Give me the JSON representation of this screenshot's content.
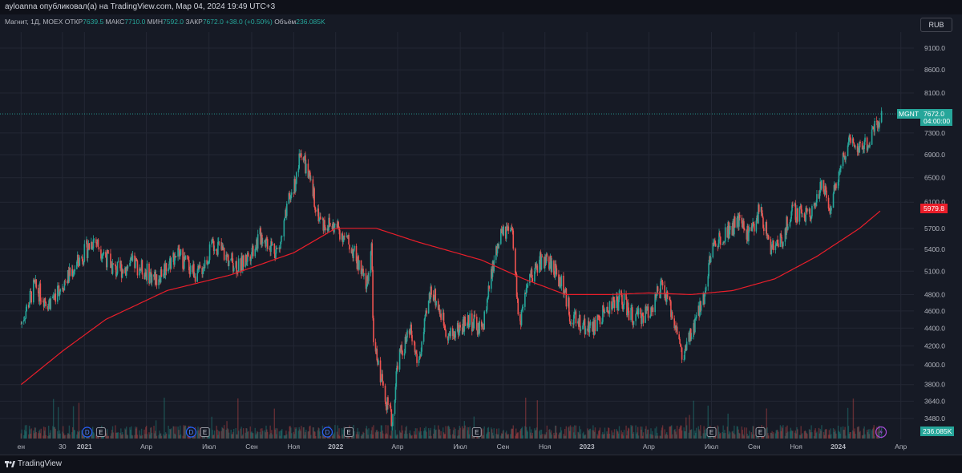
{
  "header": {
    "publisher_line": "ayloanna опубликовал(а) на TradingView.com, Мар 04, 2024 19:49 UTC+3"
  },
  "legend": {
    "symbol": "Магнит, 1Д, MOEX",
    "open_label": "ОТКР",
    "open_value": "7639.5",
    "high_label": "МАКС",
    "high_value": "7710.0",
    "low_label": "МИН",
    "low_value": "7592.0",
    "close_label": "ЗАКР",
    "close_value": "7672.0",
    "change": "+38.0 (+0.50%)",
    "volume_label": "Объём",
    "volume_value": "236.085K"
  },
  "currency_button": "RUB",
  "price_tag": {
    "ticker": "MGNT",
    "price": "7672.0",
    "countdown": "04:00:00"
  },
  "ma_tag": "5979.8",
  "volume_tag": "236.085K",
  "footer": {
    "brand": "TradingView"
  },
  "colors": {
    "up": "#26a69a",
    "down": "#ef5350",
    "ma": "#e91e2a",
    "background": "#161a25",
    "grid": "#232734"
  },
  "chart_data": {
    "type": "candlestick",
    "symbol": "MGNT",
    "interval": "1D",
    "y_axis_ticks": [
      3480,
      3640,
      3800,
      4000,
      4200,
      4400,
      4600,
      4800,
      5100,
      5400,
      5700,
      6100,
      6500,
      6900,
      7300,
      8100,
      8600,
      9100
    ],
    "y_axis_labels": [
      "3480.0",
      "3640.0",
      "3800.0",
      "4000.0",
      "4200.0",
      "4400.0",
      "4600.0",
      "4800.0",
      "5100.0",
      "5400.0",
      "5700.0",
      "6100.0",
      "6500.0",
      "6900.0",
      "7300.0",
      "8100.0",
      "8600.0",
      "9100.0"
    ],
    "y_scale": "log",
    "x_axis_labels": [
      "ен",
      "30",
      "2021",
      "Апр",
      "Июл",
      "Сен",
      "Ноя",
      "2022",
      "Апр",
      "Июл",
      "Сен",
      "Ноя",
      "2023",
      "Апр",
      "Июл",
      "Сен",
      "Ноя",
      "2024",
      "Апр"
    ],
    "x_axis_label_dates": [
      "2020-10-01",
      "2020-11-30",
      "2021-01-01",
      "2021-04-01",
      "2021-07-01",
      "2021-09-01",
      "2021-11-01",
      "2022-01-01",
      "2022-04-01",
      "2022-07-01",
      "2022-09-01",
      "2022-11-01",
      "2023-01-01",
      "2023-04-01",
      "2023-07-01",
      "2023-09-01",
      "2023-11-01",
      "2024-01-01",
      "2024-04-01"
    ],
    "x_axis_bold": [
      "2021",
      "2022",
      "2023",
      "2024"
    ],
    "price_anchors": [
      {
        "date": "2020-10-01",
        "price": 4450
      },
      {
        "date": "2020-10-20",
        "price": 4900
      },
      {
        "date": "2020-11-10",
        "price": 4700
      },
      {
        "date": "2020-12-10",
        "price": 5050
      },
      {
        "date": "2021-01-15",
        "price": 5550
      },
      {
        "date": "2021-02-15",
        "price": 5100
      },
      {
        "date": "2021-03-15",
        "price": 5200
      },
      {
        "date": "2021-04-15",
        "price": 5000
      },
      {
        "date": "2021-05-15",
        "price": 5350
      },
      {
        "date": "2021-06-15",
        "price": 5050
      },
      {
        "date": "2021-07-10",
        "price": 5500
      },
      {
        "date": "2021-07-25",
        "price": 5300
      },
      {
        "date": "2021-08-15",
        "price": 5150
      },
      {
        "date": "2021-09-15",
        "price": 5600
      },
      {
        "date": "2021-10-10",
        "price": 5350
      },
      {
        "date": "2021-10-25",
        "price": 6100
      },
      {
        "date": "2021-11-05",
        "price": 6500
      },
      {
        "date": "2021-11-12",
        "price": 7000
      },
      {
        "date": "2021-11-25",
        "price": 6400
      },
      {
        "date": "2021-12-10",
        "price": 5800
      },
      {
        "date": "2022-01-05",
        "price": 5700
      },
      {
        "date": "2022-01-25",
        "price": 5400
      },
      {
        "date": "2022-02-15",
        "price": 4900
      },
      {
        "date": "2022-02-22",
        "price": 5450
      },
      {
        "date": "2022-02-25",
        "price": 4200
      },
      {
        "date": "2022-03-24",
        "price": 3440
      },
      {
        "date": "2022-04-01",
        "price": 4050
      },
      {
        "date": "2022-04-20",
        "price": 4350
      },
      {
        "date": "2022-05-01",
        "price": 4000
      },
      {
        "date": "2022-05-20",
        "price": 4900
      },
      {
        "date": "2022-06-15",
        "price": 4300
      },
      {
        "date": "2022-07-15",
        "price": 4500
      },
      {
        "date": "2022-08-01",
        "price": 4350
      },
      {
        "date": "2022-08-20",
        "price": 5300
      },
      {
        "date": "2022-09-01",
        "price": 5650
      },
      {
        "date": "2022-09-15",
        "price": 5600
      },
      {
        "date": "2022-09-25",
        "price": 4400
      },
      {
        "date": "2022-10-10",
        "price": 5000
      },
      {
        "date": "2022-10-25",
        "price": 5250
      },
      {
        "date": "2022-11-10",
        "price": 5200
      },
      {
        "date": "2022-11-25",
        "price": 4950
      },
      {
        "date": "2022-12-10",
        "price": 4500
      },
      {
        "date": "2023-01-10",
        "price": 4400
      },
      {
        "date": "2023-02-01",
        "price": 4650
      },
      {
        "date": "2023-02-20",
        "price": 4750
      },
      {
        "date": "2023-03-10",
        "price": 4500
      },
      {
        "date": "2023-04-01",
        "price": 4600
      },
      {
        "date": "2023-04-20",
        "price": 4900
      },
      {
        "date": "2023-05-10",
        "price": 4450
      },
      {
        "date": "2023-05-20",
        "price": 4050
      },
      {
        "date": "2023-06-05",
        "price": 4400
      },
      {
        "date": "2023-06-20",
        "price": 4800
      },
      {
        "date": "2023-07-01",
        "price": 5400
      },
      {
        "date": "2023-07-20",
        "price": 5650
      },
      {
        "date": "2023-08-10",
        "price": 5800
      },
      {
        "date": "2023-08-25",
        "price": 5600
      },
      {
        "date": "2023-09-10",
        "price": 6000
      },
      {
        "date": "2023-09-25",
        "price": 5400
      },
      {
        "date": "2023-10-10",
        "price": 5500
      },
      {
        "date": "2023-10-25",
        "price": 5950
      },
      {
        "date": "2023-11-10",
        "price": 5900
      },
      {
        "date": "2023-11-25",
        "price": 6000
      },
      {
        "date": "2023-12-10",
        "price": 6400
      },
      {
        "date": "2023-12-20",
        "price": 6050
      },
      {
        "date": "2024-01-10",
        "price": 6900
      },
      {
        "date": "2024-01-20",
        "price": 7300
      },
      {
        "date": "2024-02-01",
        "price": 7000
      },
      {
        "date": "2024-02-15",
        "price": 7150
      },
      {
        "date": "2024-02-25",
        "price": 7500
      },
      {
        "date": "2024-03-04",
        "price": 7672
      }
    ],
    "ma_anchors": [
      {
        "date": "2020-10-01",
        "price": 3800
      },
      {
        "date": "2020-12-01",
        "price": 4150
      },
      {
        "date": "2021-02-01",
        "price": 4500
      },
      {
        "date": "2021-05-01",
        "price": 4850
      },
      {
        "date": "2021-08-01",
        "price": 5050
      },
      {
        "date": "2021-11-01",
        "price": 5350
      },
      {
        "date": "2022-01-01",
        "price": 5700
      },
      {
        "date": "2022-03-01",
        "price": 5700
      },
      {
        "date": "2022-05-01",
        "price": 5500
      },
      {
        "date": "2022-08-01",
        "price": 5250
      },
      {
        "date": "2022-10-01",
        "price": 5000
      },
      {
        "date": "2022-12-01",
        "price": 4800
      },
      {
        "date": "2023-02-01",
        "price": 4800
      },
      {
        "date": "2023-04-01",
        "price": 4820
      },
      {
        "date": "2023-06-01",
        "price": 4800
      },
      {
        "date": "2023-08-01",
        "price": 4850
      },
      {
        "date": "2023-10-01",
        "price": 5000
      },
      {
        "date": "2023-12-01",
        "price": 5300
      },
      {
        "date": "2024-02-01",
        "price": 5700
      },
      {
        "date": "2024-03-04",
        "price": 5979.8
      }
    ],
    "last": {
      "open": 7639.5,
      "high": 7710.0,
      "low": 7592.0,
      "close": 7672.0,
      "volume": "236.085K"
    },
    "moving_average_last": 5979.8,
    "events": [
      {
        "type": "D",
        "date": "2021-01-05"
      },
      {
        "type": "E",
        "date": "2021-01-25"
      },
      {
        "type": "D",
        "date": "2021-06-05"
      },
      {
        "type": "E",
        "date": "2021-06-25"
      },
      {
        "type": "D",
        "date": "2021-12-20"
      },
      {
        "type": "E",
        "date": "2022-01-20"
      },
      {
        "type": "E",
        "date": "2022-07-25"
      },
      {
        "type": "E",
        "date": "2023-07-01"
      },
      {
        "type": "E",
        "date": "2023-09-10"
      }
    ]
  }
}
